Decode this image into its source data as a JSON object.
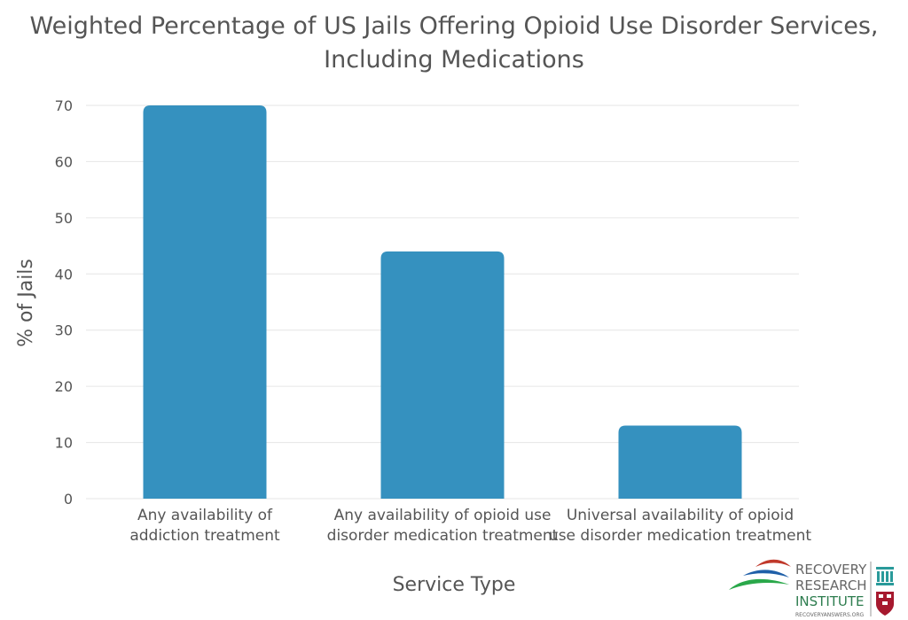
{
  "chart_data": {
    "type": "bar",
    "title_lines": [
      "Weighted Percentage of US Jails Offering Opioid Use Disorder Services,",
      "Including Medications"
    ],
    "xlabel": "Service Type",
    "ylabel": "% of Jails",
    "ylim": [
      0,
      70
    ],
    "yticks": [
      0,
      10,
      20,
      30,
      40,
      50,
      60,
      70
    ],
    "grid": true,
    "categories": [
      [
        "Any availability of",
        "addiction treatment"
      ],
      [
        "Any availability of opioid use",
        "disorder medication treatment"
      ],
      [
        "Universal availability of opioid",
        "use disorder medication treatment"
      ]
    ],
    "values": [
      70,
      44,
      13
    ],
    "bar_color": "#3591bf"
  },
  "logo": {
    "line1": "RECOVERY",
    "line2": "RESEARCH",
    "line3": "INSTITUTE",
    "url": "RECOVERYANSWERS.ORG"
  }
}
